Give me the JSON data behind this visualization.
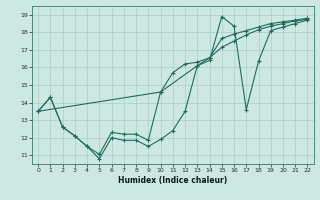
{
  "line1_x": [
    0,
    1,
    2,
    3,
    4,
    5,
    6,
    7,
    8,
    9,
    10,
    11,
    12,
    13,
    14,
    15,
    16,
    17,
    18,
    19,
    20,
    21,
    22
  ],
  "line1_y": [
    13.5,
    14.3,
    12.6,
    12.1,
    11.5,
    10.8,
    12.0,
    11.85,
    11.85,
    11.5,
    11.9,
    12.4,
    13.5,
    16.1,
    16.4,
    18.9,
    18.35,
    13.6,
    16.35,
    18.1,
    18.3,
    18.5,
    18.7
  ],
  "line2_x": [
    0,
    1,
    2,
    3,
    4,
    5,
    6,
    7,
    8,
    9,
    10,
    11,
    12,
    13,
    14,
    15,
    16,
    17,
    18,
    19,
    20,
    21,
    22
  ],
  "line2_y": [
    13.5,
    14.3,
    12.6,
    12.1,
    11.5,
    11.05,
    12.3,
    12.2,
    12.2,
    11.85,
    14.6,
    15.7,
    16.2,
    16.3,
    16.55,
    17.15,
    17.5,
    17.85,
    18.15,
    18.35,
    18.5,
    18.65,
    18.75
  ],
  "line3_x": [
    0,
    10,
    13,
    14,
    15,
    16,
    17,
    18,
    19,
    20,
    21,
    22
  ],
  "line3_y": [
    13.5,
    14.6,
    16.1,
    16.55,
    17.65,
    17.9,
    18.1,
    18.3,
    18.5,
    18.6,
    18.7,
    18.8
  ],
  "background_color": "#cde8e2",
  "grid_color": "#aacfc7",
  "line_color": "#1e6b5e",
  "xlabel": "Humidex (Indice chaleur)",
  "xlim": [
    -0.5,
    22.5
  ],
  "ylim": [
    10.5,
    19.5
  ],
  "xticks": [
    0,
    1,
    2,
    3,
    4,
    5,
    6,
    7,
    8,
    9,
    10,
    11,
    12,
    13,
    14,
    15,
    16,
    17,
    18,
    19,
    20,
    21,
    22
  ],
  "yticks": [
    11,
    12,
    13,
    14,
    15,
    16,
    17,
    18,
    19
  ]
}
